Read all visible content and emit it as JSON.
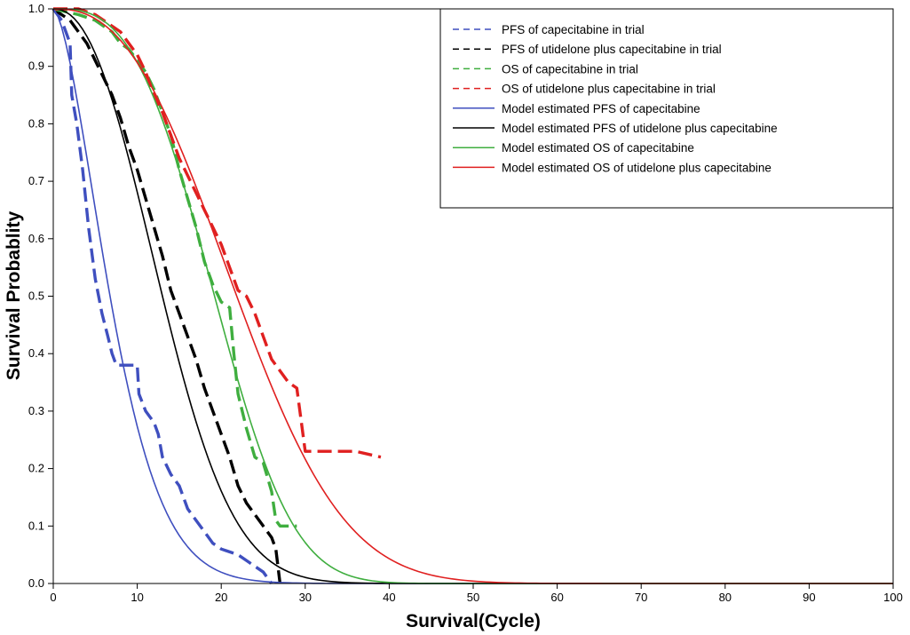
{
  "chart_data": {
    "type": "line",
    "title": "",
    "xlabel": "Survival(Cycle)",
    "ylabel": "Survival Probablity",
    "xlim": [
      0,
      100
    ],
    "ylim": [
      0,
      1
    ],
    "xticks": [
      0,
      10,
      20,
      30,
      40,
      50,
      60,
      70,
      80,
      90,
      100
    ],
    "yticks": [
      0.0,
      0.1,
      0.2,
      0.3,
      0.4,
      0.5,
      0.6,
      0.7,
      0.8,
      0.9,
      1.0
    ],
    "ytick_labels": [
      "0.0",
      "0.1",
      "0.2",
      "0.3",
      "0.4",
      "0.5",
      "0.6",
      "0.7",
      "0.8",
      "0.9",
      "1.0"
    ],
    "grid": false,
    "legend_position": "top-right",
    "series": [
      {
        "name": "PFS of capecitabine in trial",
        "style": "dashed",
        "color": "#3f4fbf",
        "points": [
          [
            0,
            1.0
          ],
          [
            1,
            0.98
          ],
          [
            1.5,
            0.96
          ],
          [
            2,
            0.94
          ],
          [
            2.2,
            0.85
          ],
          [
            2.8,
            0.8
          ],
          [
            3.5,
            0.72
          ],
          [
            4.2,
            0.62
          ],
          [
            5,
            0.53
          ],
          [
            5.8,
            0.47
          ],
          [
            6.5,
            0.43
          ],
          [
            7,
            0.4
          ],
          [
            7.5,
            0.38
          ],
          [
            10,
            0.38
          ],
          [
            10.2,
            0.33
          ],
          [
            11,
            0.3
          ],
          [
            12,
            0.28
          ],
          [
            12.5,
            0.26
          ],
          [
            13,
            0.22
          ],
          [
            14,
            0.19
          ],
          [
            15,
            0.17
          ],
          [
            16,
            0.13
          ],
          [
            17,
            0.11
          ],
          [
            18,
            0.09
          ],
          [
            19,
            0.07
          ],
          [
            20,
            0.06
          ],
          [
            22,
            0.05
          ],
          [
            23,
            0.04
          ],
          [
            24,
            0.03
          ],
          [
            25,
            0.02
          ],
          [
            26,
            0.0
          ]
        ]
      },
      {
        "name": "PFS of utidelone plus capecitabine in trial",
        "style": "dashed",
        "color": "#000000",
        "points": [
          [
            0,
            1.0
          ],
          [
            1,
            0.99
          ],
          [
            2,
            0.98
          ],
          [
            3,
            0.96
          ],
          [
            4,
            0.94
          ],
          [
            5,
            0.91
          ],
          [
            6,
            0.88
          ],
          [
            7,
            0.85
          ],
          [
            8,
            0.81
          ],
          [
            9,
            0.76
          ],
          [
            10,
            0.72
          ],
          [
            11,
            0.67
          ],
          [
            12,
            0.62
          ],
          [
            13,
            0.57
          ],
          [
            14,
            0.51
          ],
          [
            15,
            0.47
          ],
          [
            16,
            0.43
          ],
          [
            17,
            0.39
          ],
          [
            18,
            0.34
          ],
          [
            19,
            0.3
          ],
          [
            20,
            0.26
          ],
          [
            21,
            0.22
          ],
          [
            22,
            0.17
          ],
          [
            23,
            0.14
          ],
          [
            24,
            0.12
          ],
          [
            25,
            0.1
          ],
          [
            26,
            0.08
          ],
          [
            26.5,
            0.06
          ],
          [
            27,
            0.0
          ]
        ]
      },
      {
        "name": "OS of capecitabine in trial",
        "style": "dashed",
        "color": "#3fae3f",
        "points": [
          [
            0,
            1.0
          ],
          [
            3,
            0.99
          ],
          [
            5,
            0.98
          ],
          [
            6,
            0.97
          ],
          [
            7,
            0.96
          ],
          [
            8,
            0.94
          ],
          [
            9,
            0.93
          ],
          [
            10,
            0.91
          ],
          [
            11,
            0.89
          ],
          [
            12,
            0.86
          ],
          [
            13,
            0.82
          ],
          [
            14,
            0.78
          ],
          [
            15,
            0.72
          ],
          [
            16,
            0.67
          ],
          [
            17,
            0.62
          ],
          [
            18,
            0.56
          ],
          [
            19,
            0.52
          ],
          [
            20,
            0.49
          ],
          [
            21,
            0.48
          ],
          [
            21.5,
            0.4
          ],
          [
            22,
            0.33
          ],
          [
            23,
            0.27
          ],
          [
            24,
            0.22
          ],
          [
            25,
            0.21
          ],
          [
            26,
            0.16
          ],
          [
            26.5,
            0.11
          ],
          [
            27,
            0.1
          ],
          [
            29,
            0.1
          ]
        ]
      },
      {
        "name": "OS of utidelone plus capecitabine in trial",
        "style": "dashed",
        "color": "#e02020",
        "points": [
          [
            0,
            1.0
          ],
          [
            3,
            1.0
          ],
          [
            5,
            0.99
          ],
          [
            6,
            0.98
          ],
          [
            7,
            0.97
          ],
          [
            8,
            0.96
          ],
          [
            9,
            0.94
          ],
          [
            10,
            0.92
          ],
          [
            11,
            0.89
          ],
          [
            12,
            0.85
          ],
          [
            13,
            0.82
          ],
          [
            14,
            0.78
          ],
          [
            15,
            0.74
          ],
          [
            16,
            0.71
          ],
          [
            17,
            0.68
          ],
          [
            18,
            0.65
          ],
          [
            19,
            0.62
          ],
          [
            20,
            0.59
          ],
          [
            21,
            0.55
          ],
          [
            22,
            0.51
          ],
          [
            23,
            0.5
          ],
          [
            24,
            0.47
          ],
          [
            25,
            0.43
          ],
          [
            26,
            0.39
          ],
          [
            27,
            0.37
          ],
          [
            28,
            0.35
          ],
          [
            29,
            0.34
          ],
          [
            30,
            0.23
          ],
          [
            33,
            0.23
          ],
          [
            36,
            0.23
          ],
          [
            39,
            0.22
          ]
        ]
      },
      {
        "name": "Model estimated PFS of capecitabine",
        "style": "solid",
        "color": "#3f4fbf",
        "weibull": {
          "scale": 8.5,
          "shape": 1.6
        },
        "x_range": [
          0,
          100
        ]
      },
      {
        "name": "Model estimated PFS of utidelone plus capecitabine",
        "style": "solid",
        "color": "#000000",
        "weibull": {
          "scale": 15.3,
          "shape": 2.25
        },
        "x_range": [
          0,
          100
        ]
      },
      {
        "name": "Model estimated OS of capecitabine",
        "style": "solid",
        "color": "#3fae3f",
        "weibull": {
          "scale": 21.7,
          "shape": 3.0
        },
        "x_range": [
          0,
          100
        ]
      },
      {
        "name": "Model estimated OS of utidelone plus capecitabine",
        "style": "solid",
        "color": "#e02020",
        "weibull": {
          "scale": 25.3,
          "shape": 2.5
        },
        "x_range": [
          0,
          100
        ]
      }
    ]
  }
}
